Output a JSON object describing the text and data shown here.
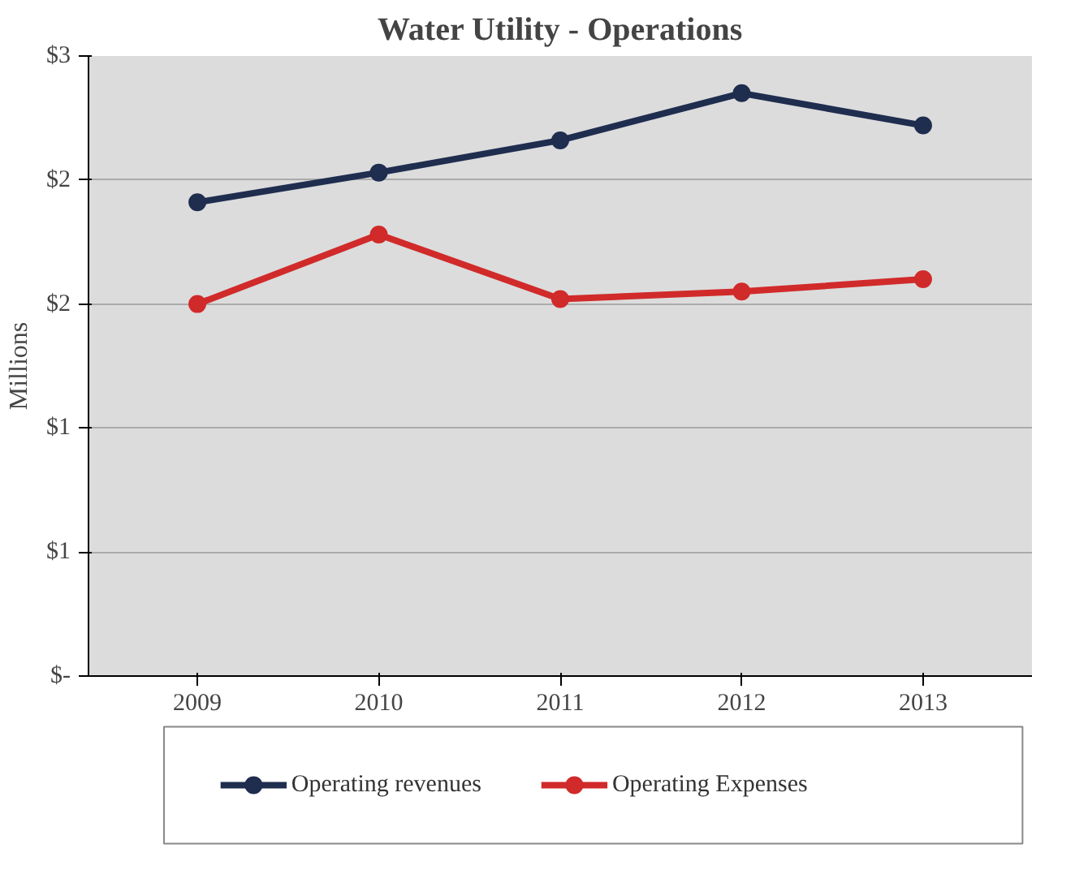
{
  "chart_data": {
    "type": "line",
    "title": "Water Utility - Operations",
    "ylabel": "Millions",
    "categories": [
      "2009",
      "2010",
      "2011",
      "2012",
      "2013"
    ],
    "series": [
      {
        "name": "Operating revenues",
        "color": "#1f2d4f",
        "values": [
          1.91,
          2.03,
          2.16,
          2.35,
          2.22
        ]
      },
      {
        "name": "Operating Expenses",
        "color": "#d12a2a",
        "values": [
          1.5,
          1.78,
          1.52,
          1.55,
          1.6
        ]
      }
    ],
    "ylim": [
      0,
      2.5
    ],
    "yticks": [
      {
        "value": 0,
        "label": "$-"
      },
      {
        "value": 0.5,
        "label": "$1"
      },
      {
        "value": 1,
        "label": "$1"
      },
      {
        "value": 1.5,
        "label": "$2"
      },
      {
        "value": 2,
        "label": "$2"
      },
      {
        "value": 2.5,
        "label": "$3"
      }
    ],
    "grid": "y",
    "legend": "bottom",
    "marker": "circle",
    "line_style": "solid"
  }
}
